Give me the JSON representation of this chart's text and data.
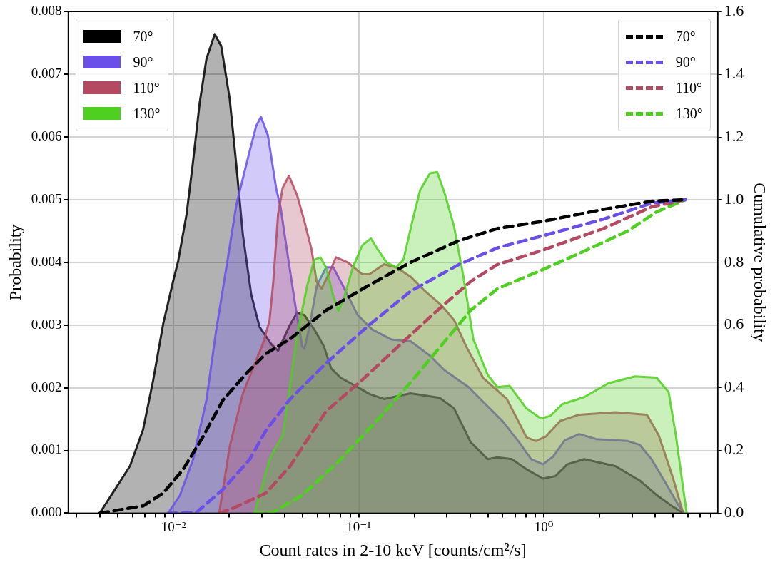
{
  "chart_data": {
    "type": "area",
    "xlabel": "Count rates in 2-10 keV [counts/cm²/s]",
    "ylabel": "Probability",
    "y2label": "Cumulative probability",
    "log": "x",
    "grid": true,
    "legend": "top left",
    "xlim": [
      0.0027,
      8.7
    ],
    "xticks": [
      {
        "value": 0.003,
        "label": null
      },
      {
        "value": 0.004,
        "label": null
      },
      {
        "value": 0.005,
        "label": null
      },
      {
        "value": 0.006,
        "label": null
      },
      {
        "value": 0.007,
        "label": null
      },
      {
        "value": 0.008,
        "label": null
      },
      {
        "value": 0.009,
        "label": null
      },
      {
        "value": 0.01,
        "label": "10⁻²"
      },
      {
        "value": 0.02,
        "label": null
      },
      {
        "value": 0.03,
        "label": null
      },
      {
        "value": 0.04,
        "label": null
      },
      {
        "value": 0.05,
        "label": null
      },
      {
        "value": 0.06,
        "label": null
      },
      {
        "value": 0.07,
        "label": null
      },
      {
        "value": 0.08,
        "label": null
      },
      {
        "value": 0.09,
        "label": null
      },
      {
        "value": 0.1,
        "label": "10⁻¹"
      },
      {
        "value": 0.2,
        "label": null
      },
      {
        "value": 0.3,
        "label": null
      },
      {
        "value": 0.4,
        "label": null
      },
      {
        "value": 0.5,
        "label": null
      },
      {
        "value": 0.6,
        "label": null
      },
      {
        "value": 0.7,
        "label": null
      },
      {
        "value": 0.8,
        "label": null
      },
      {
        "value": 0.9,
        "label": null
      },
      {
        "value": 1,
        "label": "10⁰"
      },
      {
        "value": 2,
        "label": null
      },
      {
        "value": 3,
        "label": null
      },
      {
        "value": 4,
        "label": null
      },
      {
        "value": 5,
        "label": null
      },
      {
        "value": 6,
        "label": null
      },
      {
        "value": 7,
        "label": null
      },
      {
        "value": 8,
        "label": null
      }
    ],
    "ylim": [
      0,
      0.008
    ],
    "yticks": [
      {
        "value": 0,
        "label": "0.000"
      },
      {
        "value": 0.001,
        "label": "0.001"
      },
      {
        "value": 0.002,
        "label": "0.002"
      },
      {
        "value": 0.003,
        "label": "0.003"
      },
      {
        "value": 0.004,
        "label": "0.004"
      },
      {
        "value": 0.005,
        "label": "0.005"
      },
      {
        "value": 0.006,
        "label": "0.006"
      },
      {
        "value": 0.007,
        "label": "0.007"
      },
      {
        "value": 0.008,
        "label": "0.008"
      }
    ],
    "y2lim": [
      0,
      1.6
    ],
    "y2ticks": [
      {
        "value": 0,
        "label": "0.0"
      },
      {
        "value": 0.2,
        "label": "0.2"
      },
      {
        "value": 0.4,
        "label": "0.4"
      },
      {
        "value": 0.6,
        "label": "0.6"
      },
      {
        "value": 0.8,
        "label": "0.8"
      },
      {
        "value": 1,
        "label": "1.0"
      },
      {
        "value": 1.2,
        "label": "1.2"
      },
      {
        "value": 1.4,
        "label": "1.4"
      },
      {
        "value": 1.6,
        "label": "1.6"
      }
    ],
    "series": [
      {
        "name": "70°",
        "color": "#000000",
        "x": [
          0.004,
          0.00582,
          0.00685,
          0.00777,
          0.0088,
          0.00996,
          0.0106,
          0.01176,
          0.01275,
          0.01386,
          0.01506,
          0.0167,
          0.01811,
          0.02012,
          0.02186,
          0.02371,
          0.0263,
          0.02916,
          0.03367,
          0.03674,
          0.04254,
          0.04656,
          0.05093,
          0.05761,
          0.06494,
          0.07105,
          0.07986,
          0.0988,
          0.1144,
          0.137,
          0.1911,
          0.2738,
          0.3279,
          0.4032,
          0.4989,
          0.5623,
          0.6731,
          0.806,
          0.991,
          1.155,
          1.342,
          1.655,
          2.436,
          3.299,
          4.068,
          5.003,
          5.658
        ],
        "values": [
          0,
          0.00075,
          0.00133,
          0.00212,
          0.00302,
          0.0037,
          0.00402,
          0.00476,
          0.0056,
          0.00655,
          0.00724,
          0.00764,
          0.00745,
          0.00661,
          0.00555,
          0.00444,
          0.00349,
          0.00297,
          0.0027,
          0.00259,
          0.003,
          0.0032,
          0.00316,
          0.00293,
          0.00266,
          0.00231,
          0.00216,
          0.00201,
          0.0019,
          0.00182,
          0.00191,
          0.00184,
          0.00167,
          0.00113,
          0.00086,
          0.00089,
          0.00086,
          0.0007,
          0.00055,
          0.00059,
          0.00078,
          0.00086,
          0.00075,
          0.00052,
          0.00029,
          0.0001,
          0
        ]
      },
      {
        "name": "90°",
        "color": "#6a4fe8",
        "x": [
          0.00937,
          0.01082,
          0.01275,
          0.01506,
          0.017,
          0.01929,
          0.02186,
          0.02572,
          0.028,
          0.02969,
          0.03235,
          0.03587,
          0.03785,
          0.04141,
          0.04532,
          0.04958,
          0.05093,
          0.05424,
          0.05934,
          0.06673,
          0.073,
          0.08256,
          0.0988,
          0.1183,
          0.1499,
          0.1911,
          0.2429,
          0.2909,
          0.3925,
          0.4989,
          0.5973,
          0.7366,
          0.8556,
          0.991,
          1.121,
          1.298,
          1.554,
          1.923,
          2.839,
          3.299,
          3.819,
          4.573,
          5.33,
          5.725
        ],
        "values": [
          0,
          0.00028,
          0.00085,
          0.0018,
          0.00291,
          0.00391,
          0.00492,
          0.00576,
          0.00618,
          0.00632,
          0.00603,
          0.00518,
          0.00489,
          0.00411,
          0.00335,
          0.00266,
          0.00262,
          0.00297,
          0.00362,
          0.00392,
          0.00392,
          0.00362,
          0.00316,
          0.00293,
          0.00277,
          0.00274,
          0.00251,
          0.00228,
          0.00201,
          0.0017,
          0.00147,
          0.00113,
          0.00086,
          0.00078,
          0.0009,
          0.00116,
          0.00126,
          0.00118,
          0.00115,
          0.00109,
          0.00086,
          0.00047,
          0.00013,
          0
        ]
      },
      {
        "name": "110°",
        "color": "#b34a62",
        "x": [
          0.01766,
          0.02012,
          0.02371,
          0.028,
          0.03039,
          0.03302,
          0.0346,
          0.03674,
          0.0389,
          0.04205,
          0.04656,
          0.05093,
          0.05572,
          0.05934,
          0.06304,
          0.06897,
          0.07546,
          0.08739,
          0.1046,
          0.1144,
          0.137,
          0.1596,
          0.1911,
          0.2288,
          0.2813,
          0.3279,
          0.3809,
          0.4411,
          0.4697,
          0.6322,
          0.806,
          0.906,
          1.024,
          1.227,
          1.554,
          2.436,
          3.609,
          4.18,
          5.003,
          5.658
        ],
        "values": [
          0,
          0.00106,
          0.00191,
          0.00244,
          0.0027,
          0.00307,
          0.00369,
          0.00477,
          0.00519,
          0.00538,
          0.00507,
          0.00466,
          0.0042,
          0.00369,
          0.00358,
          0.00381,
          0.00408,
          0.004,
          0.00381,
          0.00381,
          0.00397,
          0.00392,
          0.00377,
          0.00354,
          0.00331,
          0.00308,
          0.00266,
          0.00231,
          0.00216,
          0.00182,
          0.00121,
          0.00115,
          0.00122,
          0.00147,
          0.00157,
          0.00161,
          0.00157,
          0.00124,
          0.00055,
          0
        ]
      },
      {
        "name": "130°",
        "color": "#4fcf1f",
        "x": [
          0.02738,
          0.03302,
          0.0346,
          0.0389,
          0.04254,
          0.04656,
          0.05267,
          0.05761,
          0.06209,
          0.06673,
          0.073,
          0.07774,
          0.08256,
          0.09305,
          0.1046,
          0.1165,
          0.1252,
          0.1416,
          0.1596,
          0.1746,
          0.1963,
          0.2148,
          0.2429,
          0.2658,
          0.2909,
          0.3279,
          0.3684,
          0.4168,
          0.4989,
          0.5623,
          0.6535,
          0.806,
          0.9647,
          1.084,
          1.264,
          1.655,
          2.227,
          3.106,
          4.068,
          4.727,
          5.172,
          5.658,
          5.918
        ],
        "values": [
          0,
          0.00085,
          0.00098,
          0.00124,
          0.00201,
          0.00285,
          0.00362,
          0.00404,
          0.00408,
          0.00392,
          0.00346,
          0.00323,
          0.00339,
          0.00392,
          0.00427,
          0.00438,
          0.00423,
          0.004,
          0.00392,
          0.00404,
          0.00469,
          0.00515,
          0.00542,
          0.00544,
          0.00511,
          0.00457,
          0.00377,
          0.00277,
          0.0022,
          0.00201,
          0.00203,
          0.00167,
          0.00151,
          0.00155,
          0.00174,
          0.00185,
          0.00207,
          0.00218,
          0.00216,
          0.00193,
          0.00124,
          0.0004,
          0
        ]
      },
      {
        "name": "70°",
        "type": "line",
        "axis": "y2",
        "line_style": "dashed",
        "color": "#000000",
        "x": [
          0.004,
          0.00685,
          0.0088,
          0.01124,
          0.01446,
          0.01852,
          0.02472,
          0.03162,
          0.04254,
          0.06673,
          0.1114,
          0.1911,
          0.3481,
          0.5623,
          0.991,
          2.104,
          3.819,
          5.83
        ],
        "values": [
          0,
          0.023,
          0.064,
          0.138,
          0.244,
          0.361,
          0.445,
          0.509,
          0.555,
          0.647,
          0.724,
          0.8,
          0.869,
          0.908,
          0.931,
          0.969,
          0.995,
          1.0
        ]
      },
      {
        "name": "90°",
        "type": "line",
        "axis": "y2",
        "line_style": "dashed",
        "color": "#6a4fe8",
        "x": [
          0.00937,
          0.0133,
          0.01852,
          0.02572,
          0.03162,
          0.04254,
          0.06673,
          0.1144,
          0.1911,
          0.3481,
          0.5623,
          0.991,
          2.104,
          3.819,
          5.83
        ],
        "values": [
          0,
          0.002,
          0.076,
          0.17,
          0.264,
          0.363,
          0.478,
          0.601,
          0.708,
          0.793,
          0.846,
          0.885,
          0.938,
          0.989,
          1.0
        ]
      },
      {
        "name": "110°",
        "type": "line",
        "axis": "y2",
        "line_style": "dashed",
        "color": "#b34a62",
        "x": [
          0.01766,
          0.02012,
          0.03162,
          0.04254,
          0.06673,
          0.1046,
          0.1696,
          0.2572,
          0.4032,
          0.5623,
          0.991,
          2.104,
          3.819,
          5.83
        ],
        "values": [
          0,
          0.011,
          0.064,
          0.149,
          0.325,
          0.425,
          0.54,
          0.639,
          0.739,
          0.793,
          0.839,
          0.908,
          0.977,
          1.0
        ]
      },
      {
        "name": "130°",
        "type": "line",
        "axis": "y2",
        "line_style": "dashed",
        "color": "#4fcf1f",
        "x": [
          0.02738,
          0.0346,
          0.04958,
          0.07774,
          0.1219,
          0.1911,
          0.2572,
          0.4032,
          0.5623,
          0.991,
          1.811,
          2.839,
          4.068,
          5.83
        ],
        "values": [
          0,
          0.003,
          0.057,
          0.164,
          0.287,
          0.417,
          0.509,
          0.647,
          0.716,
          0.777,
          0.846,
          0.9,
          0.961,
          1.0
        ]
      }
    ]
  }
}
